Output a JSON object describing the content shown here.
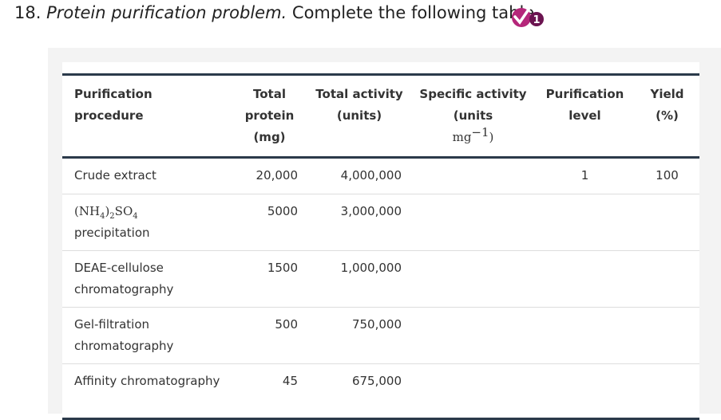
{
  "header": {
    "number": "18.",
    "title": "Protein purification problem.",
    "instruction": "Complete the following table.",
    "badge": "1"
  },
  "table": {
    "columns": [
      "Purification procedure",
      "Total protein (mg)",
      "Total activity (units)",
      {
        "text": "Specific activity (units",
        "unit": "mg",
        "exponent": "−1",
        "close": ")"
      },
      "Purification level",
      "Yield (%)"
    ],
    "rows": [
      {
        "procedure": "Crude extract",
        "protein": "20,000",
        "activity": "4,000,000",
        "purification": "1",
        "yield": "100"
      },
      {
        "procedure_formula": [
          {
            "text": "(NH"
          },
          {
            "sub": "4"
          },
          {
            "text": ")"
          },
          {
            "sub": "2"
          },
          {
            "text": "SO"
          },
          {
            "sub": "4"
          }
        ],
        "procedure": "precipitation",
        "protein": "5000",
        "activity": "3,000,000"
      },
      {
        "procedure": "DEAE-cellulose chromatography",
        "protein": "1500",
        "activity": "1,000,000"
      },
      {
        "procedure": "Gel-filtration chromatography",
        "protein": "500",
        "activity": "750,000"
      },
      {
        "procedure": "Affinity chromatography",
        "protein": "45",
        "activity": "675,000"
      }
    ]
  }
}
